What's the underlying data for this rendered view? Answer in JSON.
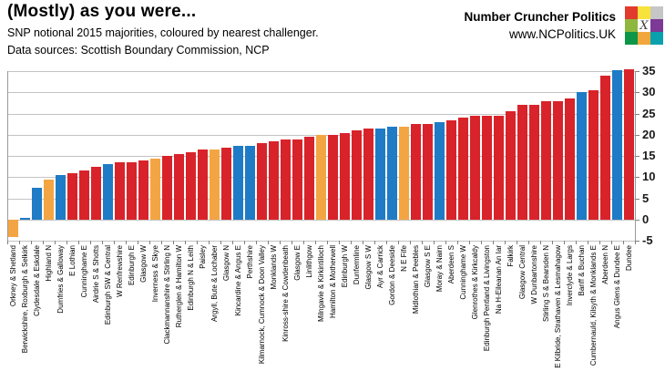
{
  "header": {
    "title": "(Mostly) as you were...",
    "subtitle": "SNP notional 2015 majorities, coloured by nearest challenger.",
    "sources": "Data sources: Scottish Boundary Commission, NCP"
  },
  "brand": {
    "name": "Number Cruncher Politics",
    "url": "www.NCPolitics.UK",
    "logo_x": "X",
    "logo_grid": [
      [
        "#e23b2e",
        "#f7e33c",
        "#c6c6c6"
      ],
      [
        "#8fb73e",
        "#ffffff",
        "#7c3996"
      ],
      [
        "#0d9648",
        "#f2a73d",
        "#0aa0ae"
      ]
    ]
  },
  "chart_data": {
    "type": "bar",
    "title": "(Mostly) as you were...",
    "subtitle": "SNP notional 2015 majorities, coloured by nearest challenger.",
    "ylim": [
      -5,
      35
    ],
    "yticks": [
      35,
      30,
      25,
      20,
      15,
      10,
      5,
      0,
      -5
    ],
    "grid": true,
    "legend": "none",
    "palette": {
      "red": "#d8232a",
      "blue": "#1f7bc5",
      "orange": "#f4a543"
    },
    "bars": [
      {
        "label": "Orkney & Shetland",
        "value": -4,
        "color": "orange"
      },
      {
        "label": "Berwickshire, Roxburgh & Selkirk",
        "value": 0.5,
        "color": "blue"
      },
      {
        "label": "Clydesdale & Eskdale",
        "value": 7.5,
        "color": "blue"
      },
      {
        "label": "Highland N",
        "value": 9.5,
        "color": "orange"
      },
      {
        "label": "Dumfries & Galloway",
        "value": 10.5,
        "color": "blue"
      },
      {
        "label": "E Lothian",
        "value": 11,
        "color": "red"
      },
      {
        "label": "Cunninghame E",
        "value": 11.5,
        "color": "red"
      },
      {
        "label": "Airdrie S & Shotts",
        "value": 12.5,
        "color": "red"
      },
      {
        "label": "Edinburgh SW & Central",
        "value": 13,
        "color": "blue"
      },
      {
        "label": "W Renfrewshire",
        "value": 13.5,
        "color": "red"
      },
      {
        "label": "Edinburgh E",
        "value": 13.5,
        "color": "red"
      },
      {
        "label": "Glasgow W",
        "value": 14,
        "color": "red"
      },
      {
        "label": "Inverness & Skye",
        "value": 14.5,
        "color": "orange"
      },
      {
        "label": "Clackmannanshire & Stirling N",
        "value": 15,
        "color": "red"
      },
      {
        "label": "Rutherglen & Hamilton W",
        "value": 15.5,
        "color": "red"
      },
      {
        "label": "Edinburgh N & Leith",
        "value": 16,
        "color": "red"
      },
      {
        "label": "Paisley",
        "value": 16.5,
        "color": "red"
      },
      {
        "label": "Argyll, Bute & Lochaber",
        "value": 16.5,
        "color": "orange"
      },
      {
        "label": "Glasgow N",
        "value": 17,
        "color": "red"
      },
      {
        "label": "Kincardine & Angus E",
        "value": 17.5,
        "color": "blue"
      },
      {
        "label": "Perthshire",
        "value": 17.5,
        "color": "blue"
      },
      {
        "label": "Kilmarnock, Cumnock & Doon Valley",
        "value": 18,
        "color": "red"
      },
      {
        "label": "Monklands W",
        "value": 18.5,
        "color": "red"
      },
      {
        "label": "Kinross-shire & Cowdenbeath",
        "value": 19,
        "color": "red"
      },
      {
        "label": "Glasgow E",
        "value": 19,
        "color": "red"
      },
      {
        "label": "Linlithgow",
        "value": 19.5,
        "color": "red"
      },
      {
        "label": "Milngavie & Kirkintilloch",
        "value": 20,
        "color": "orange"
      },
      {
        "label": "Hamilton & Motherwell",
        "value": 20,
        "color": "red"
      },
      {
        "label": "Edinburgh W",
        "value": 20.5,
        "color": "red"
      },
      {
        "label": "Dunfermline",
        "value": 21,
        "color": "red"
      },
      {
        "label": "Glasgow S W",
        "value": 21.5,
        "color": "red"
      },
      {
        "label": "Ayr & Carrick",
        "value": 21.5,
        "color": "blue"
      },
      {
        "label": "Gordon & Deeside",
        "value": 22,
        "color": "blue"
      },
      {
        "label": "N E Fife",
        "value": 22,
        "color": "orange"
      },
      {
        "label": "Midlothian & Peebles",
        "value": 22.5,
        "color": "red"
      },
      {
        "label": "Glasgow S E",
        "value": 22.5,
        "color": "red"
      },
      {
        "label": "Moray & Nairn",
        "value": 23,
        "color": "blue"
      },
      {
        "label": "Aberdeen S",
        "value": 23.5,
        "color": "red"
      },
      {
        "label": "Cunninghame W",
        "value": 24,
        "color": "red"
      },
      {
        "label": "Glenrothes & Kirkcaldy",
        "value": 24.5,
        "color": "red"
      },
      {
        "label": "Edinburgh Pentland & Livingston",
        "value": 24.5,
        "color": "red"
      },
      {
        "label": "Na H-Eileanan An Iar",
        "value": 24.5,
        "color": "red"
      },
      {
        "label": "Falkirk",
        "value": 25.5,
        "color": "red"
      },
      {
        "label": "Glasgow Central",
        "value": 27,
        "color": "red"
      },
      {
        "label": "W Dunbartonshire",
        "value": 27,
        "color": "red"
      },
      {
        "label": "Stirling S & Bearsden N",
        "value": 28,
        "color": "red"
      },
      {
        "label": "E Kilbride, Strathaven & Lesmahagow",
        "value": 28,
        "color": "red"
      },
      {
        "label": "Inverclyde & Largs",
        "value": 28.5,
        "color": "red"
      },
      {
        "label": "Banff & Buchan",
        "value": 30,
        "color": "blue"
      },
      {
        "label": "Cumbernauld, Kilsyth & Monklands E",
        "value": 30.5,
        "color": "red"
      },
      {
        "label": "Aberdeen N",
        "value": 34,
        "color": "red"
      },
      {
        "label": "Angus Glens & Dundee E",
        "value": 35.2,
        "color": "blue"
      },
      {
        "label": "Dundee",
        "value": 35.4,
        "color": "red"
      }
    ]
  }
}
